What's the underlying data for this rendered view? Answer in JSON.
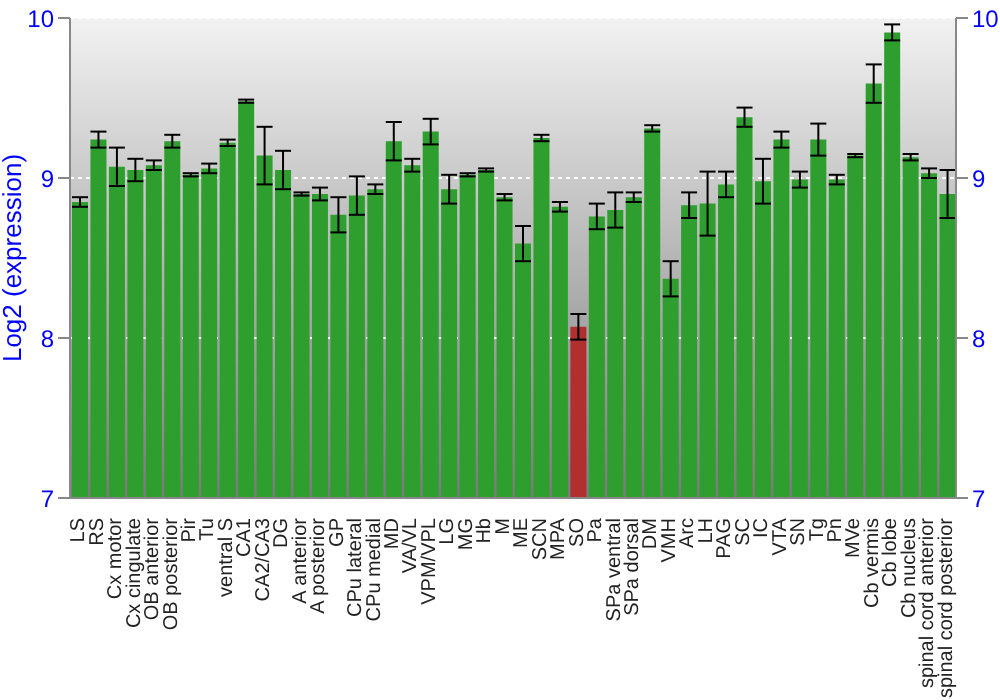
{
  "chart_data": {
    "type": "bar",
    "ylabel": "Log2 (expression)",
    "categories": [
      "LS",
      "RS",
      "Cx motor",
      "Cx cingulate",
      "OB anterior",
      "OB posterior",
      "Pir",
      "Tu",
      "ventral S",
      "CA1",
      "CA2/CA3",
      "DG",
      "A anterior",
      "A posterior",
      "GP",
      "CPu lateral",
      "CPu medial",
      "MD",
      "VA/VL",
      "VPM/VPL",
      "LG",
      "MG",
      "Hb",
      "M",
      "ME",
      "SCN",
      "MPA",
      "SO",
      "Pa",
      "SPa ventral",
      "SPa dorsal",
      "DM",
      "VMH",
      "Arc",
      "LH",
      "PAG",
      "SC",
      "IC",
      "VTA",
      "SN",
      "Tg",
      "Pn",
      "MVe",
      "Cb vermis",
      "Cb lobe",
      "Cb nucleus",
      "spinal cord anterior",
      "spinal cord posterior"
    ],
    "values": [
      8.85,
      9.24,
      9.07,
      9.05,
      9.08,
      9.23,
      9.02,
      9.06,
      9.22,
      9.48,
      9.14,
      9.05,
      8.9,
      8.9,
      8.77,
      8.89,
      8.93,
      9.23,
      9.08,
      9.29,
      8.93,
      9.02,
      9.05,
      8.88,
      8.59,
      9.25,
      8.82,
      8.07,
      8.76,
      8.8,
      8.88,
      9.31,
      8.37,
      8.83,
      8.84,
      8.96,
      9.38,
      8.98,
      9.24,
      8.99,
      9.24,
      8.99,
      9.14,
      9.59,
      9.91,
      9.13,
      9.03,
      8.9
    ],
    "errors": [
      0.03,
      0.05,
      0.12,
      0.07,
      0.03,
      0.04,
      0.01,
      0.03,
      0.02,
      0.01,
      0.18,
      0.12,
      0.01,
      0.04,
      0.11,
      0.12,
      0.03,
      0.12,
      0.04,
      0.08,
      0.09,
      0.01,
      0.01,
      0.02,
      0.11,
      0.02,
      0.03,
      0.08,
      0.08,
      0.11,
      0.03,
      0.02,
      0.11,
      0.08,
      0.2,
      0.08,
      0.06,
      0.14,
      0.05,
      0.05,
      0.1,
      0.03,
      0.01,
      0.12,
      0.05,
      0.02,
      0.03,
      0.15
    ],
    "colors": [
      "#2e9e2e",
      "#2e9e2e",
      "#2e9e2e",
      "#2e9e2e",
      "#2e9e2e",
      "#2e9e2e",
      "#2e9e2e",
      "#2e9e2e",
      "#2e9e2e",
      "#2e9e2e",
      "#2e9e2e",
      "#2e9e2e",
      "#2e9e2e",
      "#2e9e2e",
      "#2e9e2e",
      "#2e9e2e",
      "#2e9e2e",
      "#2e9e2e",
      "#2e9e2e",
      "#2e9e2e",
      "#2e9e2e",
      "#2e9e2e",
      "#2e9e2e",
      "#2e9e2e",
      "#2e9e2e",
      "#2e9e2e",
      "#2e9e2e",
      "#b03030",
      "#2e9e2e",
      "#2e9e2e",
      "#2e9e2e",
      "#2e9e2e",
      "#2e9e2e",
      "#2e9e2e",
      "#2e9e2e",
      "#2e9e2e",
      "#2e9e2e",
      "#2e9e2e",
      "#2e9e2e",
      "#2e9e2e",
      "#2e9e2e",
      "#2e9e2e",
      "#2e9e2e",
      "#2e9e2e",
      "#2e9e2e",
      "#2e9e2e",
      "#2e9e2e",
      "#2e9e2e"
    ],
    "ylim": [
      7,
      10
    ],
    "yticks": [
      7,
      8,
      9,
      10
    ],
    "y2lim": [
      7,
      10
    ],
    "y2ticks": [
      7,
      8,
      9,
      10
    ],
    "grid": "y"
  }
}
